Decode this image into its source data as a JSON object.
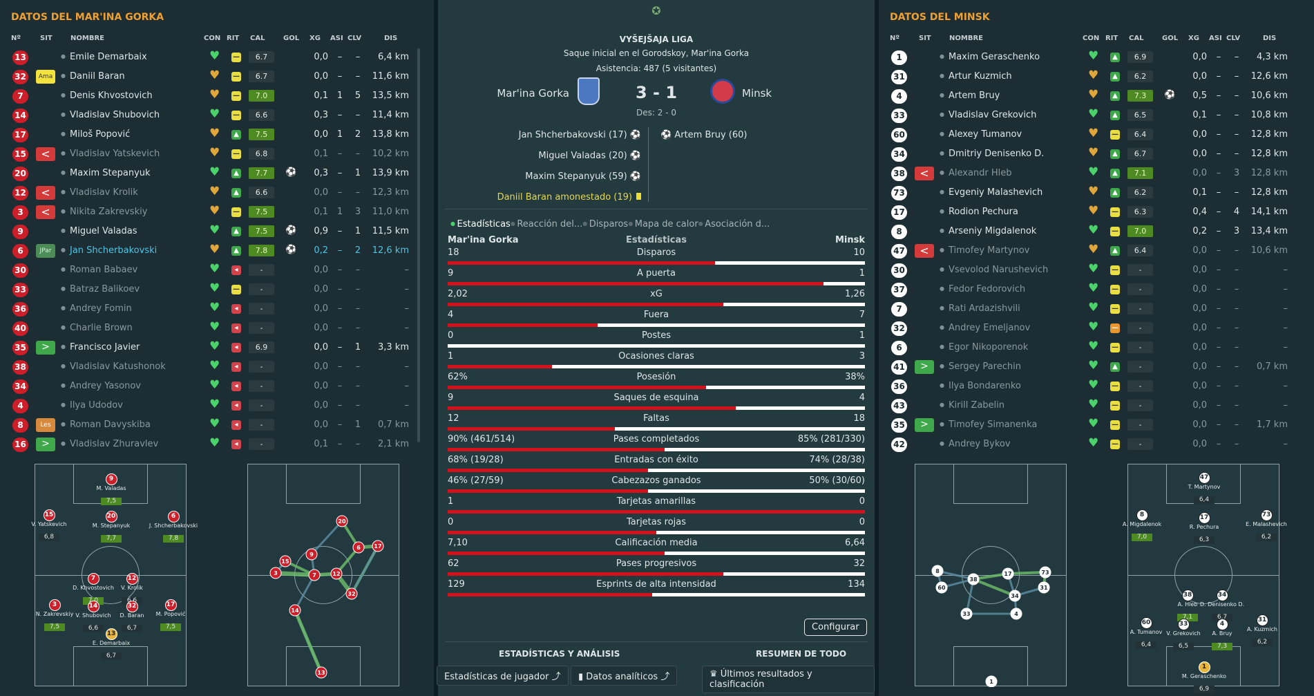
{
  "left": {
    "title": "DATOS DEL MAR'INA GORKA",
    "headers": [
      "Nº",
      "SIT",
      "NOMBRE",
      "CON",
      "RIT",
      "CAL",
      "GOL",
      "XG",
      "ASI",
      "CLV",
      "DIS"
    ],
    "rows": [
      {
        "num": "13",
        "sit": "",
        "name": "Emile Demarbaix",
        "rit": "eq",
        "cal": "6.7",
        "gol": "",
        "xg": "0,0",
        "asi": "–",
        "clv": "–",
        "dis": "6,4 km"
      },
      {
        "num": "32",
        "sit": "Ama",
        "name": "Daniil Baran",
        "rit": "eq",
        "cal": "6.7",
        "gol": "",
        "xg": "0,0",
        "asi": "–",
        "clv": "–",
        "dis": "11,6 km"
      },
      {
        "num": "7",
        "sit": "",
        "name": "Denis Khvostovich",
        "rit": "eq",
        "cal": "7.0",
        "gol": "",
        "xg": "0,1",
        "asi": "1",
        "clv": "5",
        "dis": "13,5 km"
      },
      {
        "num": "14",
        "sit": "",
        "name": "Vladislav Shubovich",
        "rit": "eq",
        "cal": "6.6",
        "gol": "",
        "xg": "0,3",
        "asi": "–",
        "clv": "–",
        "dis": "11,4 km"
      },
      {
        "num": "17",
        "sit": "",
        "name": "Miloš Popović",
        "rit": "up",
        "cal": "7.5",
        "gol": "",
        "xg": "0,0",
        "asi": "1",
        "clv": "2",
        "dis": "13,8 km"
      },
      {
        "num": "15",
        "sit": "<",
        "name": "Vladislav Yatskevich",
        "rit": "eq",
        "cal": "6.8",
        "gol": "",
        "xg": "0,1",
        "asi": "–",
        "clv": "–",
        "dis": "10,2 km"
      },
      {
        "num": "20",
        "sit": "",
        "name": "Maxim Stepanyuk",
        "rit": "up",
        "cal": "7.7",
        "gol": "⚽",
        "xg": "0,3",
        "asi": "–",
        "clv": "1",
        "dis": "13,9 km"
      },
      {
        "num": "12",
        "sit": "<",
        "name": "Vladislav Krolik",
        "rit": "up",
        "cal": "6.6",
        "gol": "",
        "xg": "0,0",
        "asi": "–",
        "clv": "–",
        "dis": "12,3 km"
      },
      {
        "num": "3",
        "sit": "<",
        "name": "Nikita Zakrevskiy",
        "rit": "eq",
        "cal": "7.5",
        "gol": "",
        "xg": "0,1",
        "asi": "1",
        "clv": "3",
        "dis": "11,0 km"
      },
      {
        "num": "9",
        "sit": "",
        "name": "Miguel Valadas",
        "rit": "up",
        "cal": "7.5",
        "gol": "⚽",
        "xg": "0,9",
        "asi": "–",
        "clv": "1",
        "dis": "11,5 km"
      },
      {
        "num": "6",
        "sit": "JPar",
        "name": "Jan Shcherbakovski",
        "rit": "up",
        "cal": "7.8",
        "gol": "⚽",
        "xg": "0,2",
        "asi": "–",
        "clv": "2",
        "dis": "12,6 km"
      },
      {
        "num": "30",
        "sit": "",
        "name": "Roman Babaev",
        "rit": "dn",
        "cal": "-",
        "gol": "",
        "xg": "0,0",
        "asi": "–",
        "clv": "–",
        "dis": "–"
      },
      {
        "num": "33",
        "sit": "",
        "name": "Batraz Balikoev",
        "rit": "eq",
        "cal": "-",
        "gol": "",
        "xg": "0,0",
        "asi": "–",
        "clv": "–",
        "dis": "–"
      },
      {
        "num": "36",
        "sit": "",
        "name": "Andrey Fomin",
        "rit": "dn",
        "cal": "-",
        "gol": "",
        "xg": "0,0",
        "asi": "–",
        "clv": "–",
        "dis": "–"
      },
      {
        "num": "40",
        "sit": "",
        "name": "Charlie Brown",
        "rit": "dn",
        "cal": "-",
        "gol": "",
        "xg": "0,0",
        "asi": "–",
        "clv": "–",
        "dis": "–"
      },
      {
        "num": "35",
        "sit": ">",
        "name": "Francisco Javier",
        "rit": "dn",
        "cal": "6.9",
        "gol": "",
        "xg": "0,0",
        "asi": "–",
        "clv": "1",
        "dis": "3,3 km"
      },
      {
        "num": "38",
        "sit": "",
        "name": "Vladislav Katushonok",
        "rit": "dn",
        "cal": "-",
        "gol": "",
        "xg": "0,0",
        "asi": "–",
        "clv": "–",
        "dis": "–"
      },
      {
        "num": "34",
        "sit": "",
        "name": "Andrey Yasonov",
        "rit": "dn",
        "cal": "-",
        "gol": "",
        "xg": "0,0",
        "asi": "–",
        "clv": "–",
        "dis": "–"
      },
      {
        "num": "4",
        "sit": "",
        "name": "Ilya Udodov",
        "rit": "dn",
        "cal": "-",
        "gol": "",
        "xg": "0,0",
        "asi": "–",
        "clv": "–",
        "dis": "–"
      },
      {
        "num": "8",
        "sit": "Les",
        "name": "Roman Davyskiba",
        "rit": "dn",
        "cal": "-",
        "gol": "",
        "xg": "0,0",
        "asi": "–",
        "clv": "1",
        "dis": "0,7 km"
      },
      {
        "num": "16",
        "sit": ">",
        "name": "Vladislav Zhuravlev",
        "rit": "dn",
        "cal": "-",
        "gol": "",
        "xg": "0,1",
        "asi": "–",
        "clv": "–",
        "dis": "2,1 km"
      }
    ],
    "formation": [
      {
        "n": "9",
        "name": "M. Valadas",
        "r": "7,5"
      },
      {
        "n": "15",
        "name": "V. Yatskevich",
        "r": "6,8"
      },
      {
        "n": "20",
        "name": "M. Stepanyuk",
        "r": "7,7"
      },
      {
        "n": "6",
        "name": "J. Shcherbakovski",
        "r": "7,8"
      },
      {
        "n": "7",
        "name": "D. Khvostovich",
        "r": "7,0"
      },
      {
        "n": "12",
        "name": "V. Krolik",
        "r": "6,6"
      },
      {
        "n": "3",
        "name": "N. Zakrevskiy",
        "r": "7,5"
      },
      {
        "n": "14",
        "name": "V. Shubovich",
        "r": "6,6"
      },
      {
        "n": "32",
        "name": "D. Baran",
        "r": "6,7"
      },
      {
        "n": "17",
        "name": "M. Popović",
        "r": "7,5"
      },
      {
        "n": "13",
        "name": "E. Demarbaix",
        "r": "6,7"
      }
    ],
    "net": [
      "20",
      "15",
      "6",
      "9",
      "17",
      "3",
      "7",
      "12",
      "32",
      "14",
      "13"
    ]
  },
  "right": {
    "title": "DATOS DEL MINSK",
    "headers": [
      "Nº",
      "SIT",
      "NOMBRE",
      "CON",
      "RIT",
      "CAL",
      "GOL",
      "XG",
      "ASI",
      "CLV",
      "DIS"
    ],
    "rows": [
      {
        "num": "1",
        "sit": "",
        "name": "Maxim Geraschenko",
        "rit": "up",
        "cal": "6.9",
        "gol": "",
        "xg": "0,0",
        "asi": "–",
        "clv": "–",
        "dis": "4,3 km"
      },
      {
        "num": "31",
        "sit": "",
        "name": "Artur Kuzmich",
        "rit": "up",
        "cal": "6.2",
        "gol": "",
        "xg": "0,0",
        "asi": "–",
        "clv": "–",
        "dis": "12,6 km"
      },
      {
        "num": "4",
        "sit": "",
        "name": "Artem Bruy",
        "rit": "up",
        "cal": "7.3",
        "gol": "⚽",
        "xg": "0,5",
        "asi": "–",
        "clv": "–",
        "dis": "10,6 km"
      },
      {
        "num": "33",
        "sit": "",
        "name": "Vladislav Grekovich",
        "rit": "up",
        "cal": "6.5",
        "gol": "",
        "xg": "0,1",
        "asi": "–",
        "clv": "–",
        "dis": "10,8 km"
      },
      {
        "num": "60",
        "sit": "",
        "name": "Alexey Tumanov",
        "rit": "eq",
        "cal": "6.4",
        "gol": "",
        "xg": "0,0",
        "asi": "–",
        "clv": "–",
        "dis": "12,8 km"
      },
      {
        "num": "34",
        "sit": "",
        "name": "Dmitriy Denisenko D.",
        "rit": "up",
        "cal": "6.7",
        "gol": "",
        "xg": "0,0",
        "asi": "–",
        "clv": "–",
        "dis": "12,8 km"
      },
      {
        "num": "38",
        "sit": "<",
        "name": "Alexandr Hleb",
        "rit": "up",
        "cal": "7.1",
        "gol": "",
        "xg": "0,0",
        "asi": "–",
        "clv": "3",
        "dis": "12,8 km"
      },
      {
        "num": "73",
        "sit": "",
        "name": "Evgeniy Malashevich",
        "rit": "up",
        "cal": "6.2",
        "gol": "",
        "xg": "0,1",
        "asi": "–",
        "clv": "–",
        "dis": "12,8 km"
      },
      {
        "num": "17",
        "sit": "",
        "name": "Rodion Pechura",
        "rit": "eq",
        "cal": "6.3",
        "gol": "",
        "xg": "0,4",
        "asi": "–",
        "clv": "4",
        "dis": "14,1 km"
      },
      {
        "num": "8",
        "sit": "",
        "name": "Arseniy Migdalenok",
        "rit": "eq",
        "cal": "7.0",
        "gol": "",
        "xg": "0,2",
        "asi": "–",
        "clv": "3",
        "dis": "13,4 km"
      },
      {
        "num": "47",
        "sit": "<",
        "name": "Timofey Martynov",
        "rit": "up",
        "cal": "6.4",
        "gol": "",
        "xg": "0,0",
        "asi": "–",
        "clv": "–",
        "dis": "10,6 km"
      },
      {
        "num": "30",
        "sit": "",
        "name": "Vsevolod Narushevich",
        "rit": "eq",
        "cal": "-",
        "gol": "",
        "xg": "0,0",
        "asi": "–",
        "clv": "–",
        "dis": "–"
      },
      {
        "num": "37",
        "sit": "",
        "name": "Fedor Fedorovich",
        "rit": "eq",
        "cal": "-",
        "gol": "",
        "xg": "0,0",
        "asi": "–",
        "clv": "–",
        "dis": "–"
      },
      {
        "num": "7",
        "sit": "",
        "name": "Rati Ardazishvili",
        "rit": "eq",
        "cal": "-",
        "gol": "",
        "xg": "0,0",
        "asi": "–",
        "clv": "–",
        "dis": "–"
      },
      {
        "num": "32",
        "sit": "",
        "name": "Andrey Emeljanov",
        "rit": "or",
        "cal": "-",
        "gol": "",
        "xg": "0,0",
        "asi": "–",
        "clv": "–",
        "dis": "–"
      },
      {
        "num": "6",
        "sit": "",
        "name": "Egor Nikoporenok",
        "rit": "eq",
        "cal": "-",
        "gol": "",
        "xg": "0,0",
        "asi": "–",
        "clv": "–",
        "dis": "–"
      },
      {
        "num": "41",
        "sit": ">",
        "name": "Sergey Parechin",
        "rit": "up",
        "cal": "-",
        "gol": "",
        "xg": "0,0",
        "asi": "–",
        "clv": "–",
        "dis": "0,7 km"
      },
      {
        "num": "36",
        "sit": "",
        "name": "Ilya Bondarenko",
        "rit": "eq",
        "cal": "-",
        "gol": "",
        "xg": "0,0",
        "asi": "–",
        "clv": "–",
        "dis": "–"
      },
      {
        "num": "43",
        "sit": "",
        "name": "Kirill Zabelin",
        "rit": "eq",
        "cal": "-",
        "gol": "",
        "xg": "0,0",
        "asi": "–",
        "clv": "–",
        "dis": "–"
      },
      {
        "num": "35",
        "sit": ">",
        "name": "Timofey Simanenka",
        "rit": "eq",
        "cal": "-",
        "gol": "",
        "xg": "0,0",
        "asi": "–",
        "clv": "–",
        "dis": "1,7 km"
      },
      {
        "num": "42",
        "sit": "",
        "name": "Andrey Bykov",
        "rit": "eq",
        "cal": "-",
        "gol": "",
        "xg": "0,0",
        "asi": "–",
        "clv": "–",
        "dis": "–"
      }
    ],
    "formation": [
      {
        "n": "47",
        "name": "T. Martynov",
        "r": "6,4"
      },
      {
        "n": "8",
        "name": "A. Migdalenok",
        "r": "7,0"
      },
      {
        "n": "17",
        "name": "R. Pechura",
        "r": "6,3"
      },
      {
        "n": "73",
        "name": "E. Malashevich",
        "r": "6,2"
      },
      {
        "n": "38",
        "name": "A. Hleb",
        "r": "7,1"
      },
      {
        "n": "34",
        "name": "D. Denisenko D.",
        "r": "6,7"
      },
      {
        "n": "60",
        "name": "A. Tumanov",
        "r": "6,4"
      },
      {
        "n": "33",
        "name": "V. Grekovich",
        "r": "6,5"
      },
      {
        "n": "4",
        "name": "A. Bruy",
        "r": "7,3"
      },
      {
        "n": "31",
        "name": "A. Kuzmich",
        "r": "6,2"
      },
      {
        "n": "1",
        "name": "M. Geraschenko",
        "r": "6,9"
      }
    ],
    "net": [
      "8",
      "38",
      "17",
      "73",
      "60",
      "34",
      "31",
      "33",
      "4",
      "1"
    ]
  },
  "center": {
    "competition": "VYŠEJŠAJA LIGA",
    "kickoff": "Saque inicial en el Gorodskoy, Mar'ina Gorka",
    "attendance": "Asistencia: 487 (5 visitantes)",
    "home": "Mar'ina Gorka",
    "away": "Minsk",
    "score": "3 - 1",
    "ht": "Des: 2 - 0",
    "home_events": [
      "Jan Shcherbakovski (17)",
      "Miguel Valadas (20)",
      "Maxim Stepanyuk (59)"
    ],
    "booking": "Daniil Baran amonestado (19)",
    "away_events": [
      "Artem Bruy (60)"
    ],
    "tabs": [
      "Estadísticas",
      "Reacción del...",
      "Disparos",
      "Mapa de calor",
      "Asociación d..."
    ],
    "stats_header": {
      "home": "Mar'ina Gorka",
      "mid": "Estadísticas",
      "away": "Minsk"
    },
    "stats": [
      {
        "label": "Disparos",
        "h": "18",
        "a": "10",
        "p": 0.64
      },
      {
        "label": "A puerta",
        "h": "9",
        "a": "1",
        "p": 0.9
      },
      {
        "label": "xG",
        "h": "2,02",
        "a": "1,26",
        "p": 0.66
      },
      {
        "label": "Fuera",
        "h": "4",
        "a": "7",
        "p": 0.36
      },
      {
        "label": "Postes",
        "h": "0",
        "a": "1",
        "p": 0
      },
      {
        "label": "Ocasiones claras",
        "h": "1",
        "a": "3",
        "p": 0.25
      },
      {
        "label": "Posesión",
        "h": "62%",
        "a": "38%",
        "p": 0.62
      },
      {
        "label": "Saques de esquina",
        "h": "9",
        "a": "4",
        "p": 0.69
      },
      {
        "label": "Faltas",
        "h": "12",
        "a": "18",
        "p": 0.4
      },
      {
        "label": "Pases completados",
        "h": "90% (461/514)",
        "a": "85% (281/330)",
        "p": 0.52
      },
      {
        "label": "Entradas con éxito",
        "h": "68% (19/28)",
        "a": "74% (28/38)",
        "p": 0.48
      },
      {
        "label": "Cabezazos ganados",
        "h": "46% (27/59)",
        "a": "50% (30/60)",
        "p": 0.48
      },
      {
        "label": "Tarjetas amarillas",
        "h": "1",
        "a": "0",
        "p": 1
      },
      {
        "label": "Tarjetas rojas",
        "h": "0",
        "a": "0",
        "p": 0.5
      },
      {
        "label": "Calificación media",
        "h": "7,10",
        "a": "6,64",
        "p": 0.52
      },
      {
        "label": "Pases progresivos",
        "h": "62",
        "a": "32",
        "p": 0.66
      },
      {
        "label": "Esprints de alta intensidad",
        "h": "129",
        "a": "134",
        "p": 0.49
      }
    ],
    "configure": "Configurar",
    "footer_left": "ESTADÍSTICAS Y ANÁLISIS",
    "footer_right": "RESUMEN DE TODO",
    "btn_players": "Estadísticas de jugador",
    "btn_analytics": "Datos analíticos",
    "btn_results": "Últimos resultados y clasificación"
  }
}
